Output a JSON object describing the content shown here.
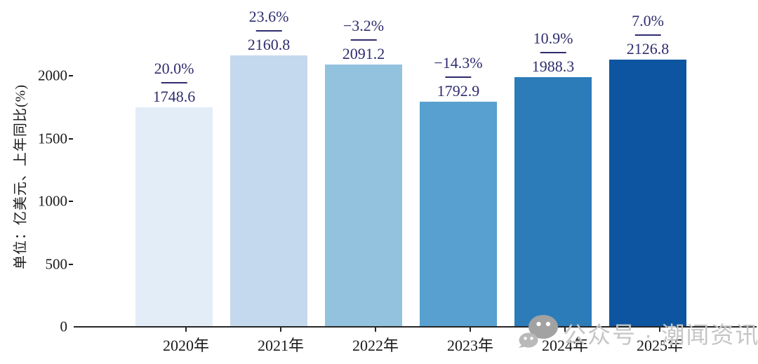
{
  "chart_data": {
    "type": "bar",
    "title": "",
    "ylabel": "单位：亿美元、上年同比(%)",
    "xlabel": "",
    "categories": [
      "2020年",
      "2021年",
      "2022年",
      "2023年",
      "2024年",
      "2025年"
    ],
    "values": [
      1748.6,
      2160.8,
      2091.2,
      1792.9,
      1988.3,
      2126.8
    ],
    "value_labels": [
      "1748.6",
      "2160.8",
      "2091.2",
      "1792.9",
      "1988.3",
      "2126.8"
    ],
    "growth_pct": [
      "20.0%",
      "23.6%",
      "−3.2%",
      "−14.3%",
      "10.9%",
      "7.0%"
    ],
    "y_tick_labels": [
      "2000",
      "1500",
      "1000",
      "500",
      "0"
    ],
    "y_tick_values": [
      2000,
      1500,
      1000,
      500,
      0
    ],
    "ylim": [
      0,
      2560
    ],
    "grid": "off",
    "legend": "none",
    "bar_colors": [
      "#e3edf8",
      "#c5d9ee",
      "#93c2df",
      "#57a0cf",
      "#2c7cba",
      "#0d55a0"
    ],
    "annotation_color": "#2e2c6e",
    "axis_color": "#262626"
  },
  "watermark": {
    "text": "公众号 · 潮闻资讯",
    "icon": "wechat-icon",
    "color": "#c6c6c6"
  }
}
